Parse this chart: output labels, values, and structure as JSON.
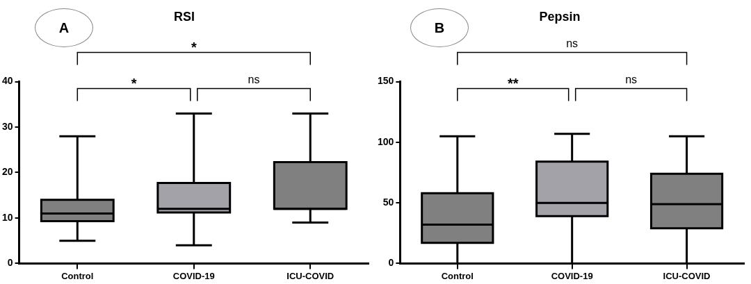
{
  "chart_data": [
    {
      "type": "box",
      "title": "RSI",
      "categories": [
        "Control",
        "COVID-19",
        "ICU-COVID"
      ],
      "colors": [
        "#808080",
        "#a2a2a8",
        "#808080"
      ],
      "boxes": [
        {
          "low": 5,
          "q1": 9.3,
          "median": 11,
          "q3": 14,
          "high": 28
        },
        {
          "low": 4,
          "q1": 11.2,
          "median": 12,
          "q3": 17.7,
          "high": 33
        },
        {
          "low": 9,
          "q1": 12,
          "median": 12,
          "q3": 22.3,
          "high": 33
        }
      ],
      "ylim": [
        0,
        40
      ],
      "yticks": [
        0,
        10,
        20,
        30,
        40
      ],
      "grid": false,
      "legend": false,
      "annotations": [
        "A",
        "*",
        "*",
        "ns"
      ]
    },
    {
      "type": "box",
      "title": "Pepsin",
      "categories": [
        "Control",
        "COVID-19",
        "ICU-COVID"
      ],
      "colors": [
        "#808080",
        "#a2a2a8",
        "#808080"
      ],
      "boxes": [
        {
          "low": 0,
          "q1": 17,
          "median": 32,
          "q3": 58,
          "high": 105
        },
        {
          "low": 0,
          "q1": 39,
          "median": 50,
          "q3": 84,
          "high": 107
        },
        {
          "low": 0,
          "q1": 29,
          "median": 49,
          "q3": 74,
          "high": 105
        }
      ],
      "ylim": [
        0,
        150
      ],
      "yticks": [
        0,
        50,
        100,
        150
      ],
      "grid": false,
      "legend": false,
      "annotations": [
        "B",
        "ns",
        "**",
        "ns"
      ]
    }
  ]
}
